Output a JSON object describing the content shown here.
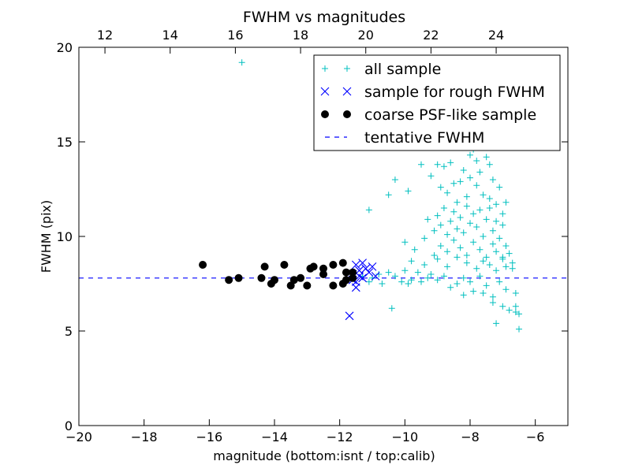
{
  "chart_data": {
    "type": "scatter",
    "title": "FWHM vs magnitudes",
    "xlabel": "magnitude (bottom:isnt / top:calib)",
    "ylabel": "FWHM (pix)",
    "xlim": [
      -20,
      -5
    ],
    "ylim": [
      0,
      20
    ],
    "top_xlim": [
      11.2,
      26.2
    ],
    "x_ticks": [
      -20,
      -18,
      -16,
      -14,
      -12,
      -10,
      -8,
      -6
    ],
    "x_tick_labels": [
      "−20",
      "−18",
      "−16",
      "−14",
      "−12",
      "−10",
      "−8",
      "−6"
    ],
    "y_ticks": [
      0,
      5,
      10,
      15,
      20
    ],
    "y_tick_labels": [
      "0",
      "5",
      "10",
      "15",
      "20"
    ],
    "top_x_ticks": [
      12,
      14,
      16,
      18,
      20,
      22,
      24
    ],
    "top_x_tick_labels": [
      "12",
      "14",
      "16",
      "18",
      "20",
      "22",
      "24"
    ],
    "grid": false,
    "legend_placement": "top-right",
    "colors": {
      "all_sample": "#00bfbf",
      "rough_sample": "#0000ff",
      "psf_sample": "#000000",
      "tentative": "#0000ff"
    },
    "series": [
      {
        "name": "all sample",
        "marker": "plus",
        "points": [
          [
            -15.0,
            19.2
          ],
          [
            -11.3,
            7.9
          ],
          [
            -11.1,
            7.6
          ],
          [
            -11.0,
            7.8
          ],
          [
            -10.8,
            8.0
          ],
          [
            -10.7,
            7.5
          ],
          [
            -10.5,
            8.1
          ],
          [
            -10.4,
            6.2
          ],
          [
            -10.3,
            7.9
          ],
          [
            -10.1,
            7.6
          ],
          [
            -10.0,
            8.2
          ],
          [
            -9.9,
            7.5
          ],
          [
            -9.8,
            7.7
          ],
          [
            -9.6,
            8.1
          ],
          [
            -9.5,
            7.6
          ],
          [
            -9.3,
            7.8
          ],
          [
            -9.2,
            8.0
          ],
          [
            -9.0,
            7.7
          ],
          [
            -8.8,
            7.9
          ],
          [
            -8.6,
            7.3
          ],
          [
            -8.4,
            7.5
          ],
          [
            -8.2,
            7.8
          ],
          [
            -8.0,
            7.6
          ],
          [
            -7.9,
            7.1
          ],
          [
            -7.7,
            7.9
          ],
          [
            -7.5,
            7.4
          ],
          [
            -7.3,
            6.8
          ],
          [
            -7.1,
            7.6
          ],
          [
            -6.9,
            7.2
          ],
          [
            -6.7,
            8.3
          ],
          [
            -6.6,
            7.0
          ],
          [
            -6.6,
            6.3
          ],
          [
            -6.5,
            5.1
          ],
          [
            -6.5,
            5.9
          ],
          [
            -6.6,
            6.0
          ],
          [
            -11.1,
            11.4
          ],
          [
            -10.5,
            12.2
          ],
          [
            -10.3,
            13.0
          ],
          [
            -9.9,
            12.4
          ],
          [
            -9.5,
            13.8
          ],
          [
            -9.2,
            13.2
          ],
          [
            -9.0,
            13.8
          ],
          [
            -8.9,
            12.6
          ],
          [
            -8.8,
            13.7
          ],
          [
            -8.7,
            12.3
          ],
          [
            -8.6,
            13.9
          ],
          [
            -8.5,
            12.8
          ],
          [
            -8.4,
            11.8
          ],
          [
            -8.3,
            12.9
          ],
          [
            -8.2,
            13.5
          ],
          [
            -8.1,
            12.1
          ],
          [
            -8.0,
            13.1
          ],
          [
            -7.9,
            14.6
          ],
          [
            -7.8,
            12.7
          ],
          [
            -7.7,
            13.4
          ],
          [
            -7.6,
            12.2
          ],
          [
            -7.5,
            14.2
          ],
          [
            -7.4,
            12.0
          ],
          [
            -7.3,
            13.0
          ],
          [
            -7.2,
            11.7
          ],
          [
            -7.1,
            12.6
          ],
          [
            -7.0,
            11.2
          ],
          [
            -6.9,
            11.8
          ],
          [
            -9.3,
            10.9
          ],
          [
            -9.1,
            10.3
          ],
          [
            -9.0,
            11.1
          ],
          [
            -8.9,
            10.6
          ],
          [
            -8.8,
            11.5
          ],
          [
            -8.7,
            10.1
          ],
          [
            -8.6,
            10.8
          ],
          [
            -8.5,
            11.3
          ],
          [
            -8.4,
            10.4
          ],
          [
            -8.3,
            11.0
          ],
          [
            -8.2,
            10.2
          ],
          [
            -8.1,
            11.6
          ],
          [
            -8.0,
            10.7
          ],
          [
            -7.9,
            11.2
          ],
          [
            -7.8,
            10.5
          ],
          [
            -7.7,
            11.4
          ],
          [
            -7.6,
            10.0
          ],
          [
            -7.5,
            10.9
          ],
          [
            -7.4,
            11.5
          ],
          [
            -7.3,
            10.3
          ],
          [
            -7.2,
            10.8
          ],
          [
            -7.1,
            9.9
          ],
          [
            -7.0,
            10.6
          ],
          [
            -6.9,
            9.5
          ],
          [
            -6.8,
            9.1
          ],
          [
            -6.7,
            8.6
          ],
          [
            -10.0,
            9.7
          ],
          [
            -9.7,
            9.3
          ],
          [
            -9.4,
            9.9
          ],
          [
            -9.1,
            9.0
          ],
          [
            -8.9,
            9.5
          ],
          [
            -8.7,
            9.2
          ],
          [
            -8.5,
            9.8
          ],
          [
            -8.3,
            9.4
          ],
          [
            -8.1,
            9.0
          ],
          [
            -7.9,
            9.7
          ],
          [
            -7.7,
            9.3
          ],
          [
            -7.5,
            8.9
          ],
          [
            -7.3,
            9.6
          ],
          [
            -7.2,
            9.2
          ],
          [
            -7.0,
            8.8
          ],
          [
            -6.9,
            8.4
          ],
          [
            -9.8,
            8.7
          ],
          [
            -9.4,
            8.5
          ],
          [
            -9.0,
            8.8
          ],
          [
            -8.7,
            8.4
          ],
          [
            -8.4,
            8.9
          ],
          [
            -8.1,
            8.6
          ],
          [
            -7.8,
            8.3
          ],
          [
            -7.6,
            8.7
          ],
          [
            -7.4,
            8.5
          ],
          [
            -7.2,
            8.2
          ],
          [
            -7.0,
            8.9
          ],
          [
            -8.2,
            6.9
          ],
          [
            -7.6,
            7.0
          ],
          [
            -7.3,
            6.5
          ],
          [
            -7.2,
            5.4
          ],
          [
            -7.0,
            6.3
          ],
          [
            -6.8,
            6.1
          ],
          [
            -7.8,
            14.0
          ],
          [
            -7.4,
            13.8
          ],
          [
            -7.6,
            14.8
          ],
          [
            -8.0,
            14.3
          ]
        ]
      },
      {
        "name": "sample for rough FWHM",
        "marker": "x",
        "points": [
          [
            -11.5,
            8.5
          ],
          [
            -11.4,
            8.2
          ],
          [
            -11.6,
            8.0
          ],
          [
            -11.3,
            7.8
          ],
          [
            -11.5,
            7.6
          ],
          [
            -11.2,
            8.3
          ],
          [
            -11.0,
            8.4
          ],
          [
            -11.4,
            7.9
          ],
          [
            -11.6,
            7.7
          ],
          [
            -11.3,
            8.6
          ],
          [
            -11.5,
            7.3
          ],
          [
            -10.9,
            7.9
          ],
          [
            -11.1,
            8.1
          ],
          [
            -11.7,
            5.8
          ]
        ]
      },
      {
        "name": "coarse PSF-like sample",
        "marker": "dot",
        "points": [
          [
            -16.2,
            8.5
          ],
          [
            -15.4,
            7.7
          ],
          [
            -15.1,
            7.8
          ],
          [
            -14.4,
            7.8
          ],
          [
            -14.3,
            8.4
          ],
          [
            -14.1,
            7.5
          ],
          [
            -14.0,
            7.7
          ],
          [
            -13.7,
            8.5
          ],
          [
            -13.5,
            7.4
          ],
          [
            -13.4,
            7.7
          ],
          [
            -13.2,
            7.8
          ],
          [
            -13.0,
            7.4
          ],
          [
            -12.9,
            8.3
          ],
          [
            -12.8,
            8.4
          ],
          [
            -12.5,
            8.3
          ],
          [
            -12.5,
            8.0
          ],
          [
            -12.2,
            7.4
          ],
          [
            -12.2,
            8.5
          ],
          [
            -11.9,
            8.6
          ],
          [
            -11.9,
            7.5
          ],
          [
            -11.8,
            8.1
          ],
          [
            -11.8,
            7.7
          ],
          [
            -11.6,
            8.1
          ],
          [
            -11.6,
            7.8
          ]
        ]
      }
    ],
    "tentative_fwhm": {
      "name": "tentative FWHM",
      "value": 7.8
    },
    "legend": [
      {
        "label": "all sample",
        "marker": "plus"
      },
      {
        "label": "sample for rough FWHM",
        "marker": "x"
      },
      {
        "label": "coarse PSF-like sample",
        "marker": "dot"
      },
      {
        "label": "tentative FWHM",
        "marker": "dash"
      }
    ]
  }
}
